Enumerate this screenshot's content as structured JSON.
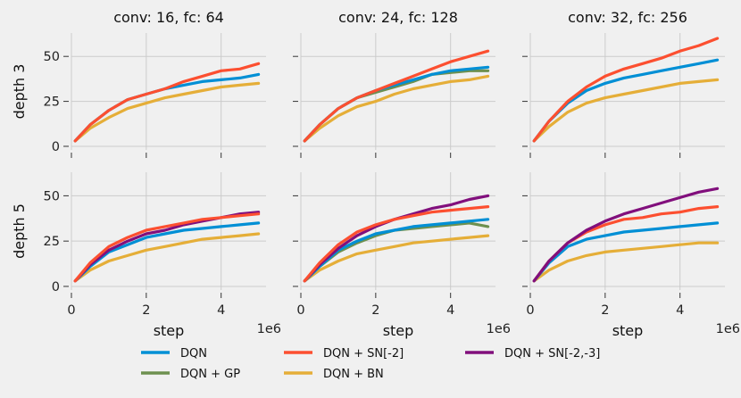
{
  "chart_data": {
    "type": "line",
    "columns": [
      "conv: 16, fc: 64",
      "conv: 24, fc: 128",
      "conv: 32, fc: 256"
    ],
    "rows": [
      "depth 3",
      "depth 5"
    ],
    "xlabel": "step",
    "x_exponent_label": "1e6",
    "xlim": [
      0,
      5.2
    ],
    "ylim": [
      -2,
      63
    ],
    "xticks": [
      0,
      2,
      4
    ],
    "xtick_labels": [
      "0",
      "2",
      "4"
    ],
    "yticks": [
      0,
      25,
      50
    ],
    "ytick_labels": [
      "0",
      "25",
      "50"
    ],
    "x": [
      0.1,
      0.5,
      1.0,
      1.5,
      2.0,
      2.5,
      3.0,
      3.5,
      4.0,
      4.5,
      5.0
    ],
    "legend": [
      {
        "key": "dqn",
        "name": "DQN",
        "color": "#008fd5"
      },
      {
        "key": "gp",
        "name": "DQN + GP",
        "color": "#6d904f"
      },
      {
        "key": "sn2",
        "name": "DQN + SN[-2]",
        "color": "#fc4f30"
      },
      {
        "key": "bn",
        "name": "DQN + BN",
        "color": "#e5ae38"
      },
      {
        "key": "sn23",
        "name": "DQN + SN[-2,-3]",
        "color": "#810f7c"
      }
    ],
    "panels": [
      {
        "row": 0,
        "col": 0,
        "series": [
          {
            "key": "bn",
            "values": [
              3,
              10,
              16,
              21,
              24,
              27,
              29,
              31,
              33,
              34,
              35
            ]
          },
          {
            "key": "dqn",
            "values": [
              3,
              12,
              20,
              26,
              29,
              32,
              34,
              36,
              37,
              38,
              40
            ]
          },
          {
            "key": "sn2",
            "values": [
              3,
              12,
              20,
              26,
              29,
              32,
              36,
              39,
              42,
              43,
              46
            ]
          }
        ]
      },
      {
        "row": 0,
        "col": 1,
        "series": [
          {
            "key": "bn",
            "values": [
              3,
              10,
              17,
              22,
              25,
              29,
              32,
              34,
              36,
              37,
              39
            ]
          },
          {
            "key": "gp",
            "values": [
              3,
              12,
              21,
              27,
              30,
              33,
              36,
              40,
              41,
              42,
              42
            ]
          },
          {
            "key": "dqn",
            "values": [
              3,
              12,
              21,
              27,
              31,
              34,
              37,
              40,
              42,
              43,
              44
            ]
          },
          {
            "key": "sn2",
            "values": [
              3,
              12,
              21,
              27,
              31,
              35,
              39,
              43,
              47,
              50,
              53
            ]
          }
        ]
      },
      {
        "row": 1,
        "col": 0,
        "series": [
          {
            "key": "bn",
            "values": [
              3,
              9,
              14,
              17,
              20,
              22,
              24,
              26,
              27,
              28,
              29
            ]
          },
          {
            "key": "dqn",
            "values": [
              3,
              11,
              19,
              23,
              27,
              29,
              31,
              32,
              33,
              34,
              35
            ]
          },
          {
            "key": "sn23",
            "values": [
              3,
              12,
              20,
              25,
              29,
              31,
              34,
              36,
              38,
              40,
              41
            ]
          },
          {
            "key": "sn2",
            "values": [
              3,
              13,
              22,
              27,
              31,
              33,
              35,
              37,
              38,
              39,
              40
            ]
          }
        ]
      },
      {
        "row": 1,
        "col": 1,
        "series": [
          {
            "key": "bn",
            "values": [
              3,
              9,
              14,
              18,
              20,
              22,
              24,
              25,
              26,
              27,
              28
            ]
          },
          {
            "key": "gp",
            "values": [
              3,
              11,
              19,
              24,
              28,
              31,
              32,
              33,
              34,
              35,
              33
            ]
          },
          {
            "key": "dqn",
            "values": [
              3,
              11,
              20,
              25,
              29,
              31,
              33,
              34,
              35,
              36,
              37
            ]
          },
          {
            "key": "sn23",
            "values": [
              3,
              12,
              21,
              28,
              33,
              37,
              40,
              43,
              45,
              48,
              50
            ]
          },
          {
            "key": "sn2",
            "values": [
              3,
              13,
              23,
              30,
              34,
              37,
              39,
              41,
              42,
              43,
              44
            ]
          }
        ]
      },
      {
        "row": 1,
        "col": 2,
        "series": [
          {
            "key": "bn",
            "values": [
              3,
              9,
              14,
              17,
              19,
              20,
              21,
              22,
              23,
              24,
              24
            ]
          },
          {
            "key": "dqn",
            "values": [
              3,
              13,
              22,
              26,
              28,
              30,
              31,
              32,
              33,
              34,
              35
            ]
          },
          {
            "key": "sn2",
            "values": [
              3,
              14,
              24,
              30,
              34,
              37,
              38,
              40,
              41,
              43,
              44
            ]
          },
          {
            "key": "sn23",
            "values": [
              3,
              14,
              24,
              31,
              36,
              40,
              43,
              46,
              49,
              52,
              54
            ]
          }
        ]
      },
      {
        "row": 0,
        "col": 2,
        "series": [
          {
            "key": "bn",
            "values": [
              3,
              11,
              19,
              24,
              27,
              29,
              31,
              33,
              35,
              36,
              37
            ]
          },
          {
            "key": "dqn",
            "values": [
              3,
              14,
              24,
              31,
              35,
              38,
              40,
              42,
              44,
              46,
              48
            ]
          },
          {
            "key": "sn2",
            "values": [
              3,
              14,
              25,
              33,
              39,
              43,
              46,
              49,
              53,
              56,
              60
            ]
          }
        ]
      }
    ]
  }
}
